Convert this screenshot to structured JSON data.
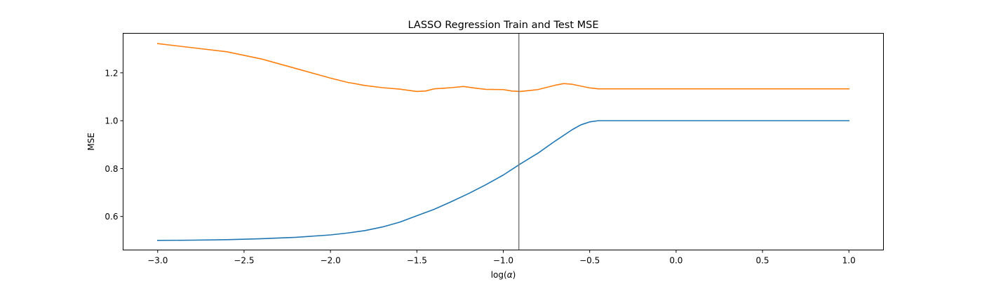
{
  "chart_data": {
    "type": "line",
    "title": "LASSO Regression Train and Test MSE",
    "xlabel_text": "log(",
    "xlabel_symbol": "α",
    "xlabel_close": ")",
    "ylabel": "MSE",
    "xlim": [
      -3.2,
      1.2
    ],
    "ylim": [
      0.46,
      1.365
    ],
    "xticks": [
      -3.0,
      -2.5,
      -2.0,
      -1.5,
      -1.0,
      -0.5,
      0.0,
      0.5,
      1.0
    ],
    "xtick_labels": [
      "−3.0",
      "−2.5",
      "−2.0",
      "−1.5",
      "−1.0",
      "−0.5",
      "0.0",
      "0.5",
      "1.0"
    ],
    "yticks": [
      0.6,
      0.8,
      1.0,
      1.2
    ],
    "ytick_labels": [
      "0.6",
      "0.8",
      "1.0",
      "1.2"
    ],
    "grid": false,
    "vline": {
      "x": -0.91,
      "color": "#808080"
    },
    "series": [
      {
        "color": "#1f77b4",
        "x": [
          -3.0,
          -2.8,
          -2.6,
          -2.4,
          -2.2,
          -2.0,
          -1.9,
          -1.8,
          -1.7,
          -1.6,
          -1.5,
          -1.4,
          -1.3,
          -1.2,
          -1.1,
          -1.0,
          -0.9,
          -0.8,
          -0.7,
          -0.6,
          -0.55,
          -0.5,
          -0.45,
          -0.4,
          0.0,
          0.5,
          1.0
        ],
        "y": [
          0.5,
          0.501,
          0.503,
          0.507,
          0.513,
          0.523,
          0.531,
          0.541,
          0.556,
          0.576,
          0.603,
          0.63,
          0.662,
          0.696,
          0.733,
          0.773,
          0.82,
          0.864,
          0.915,
          0.963,
          0.983,
          0.995,
          1.0,
          1.0,
          1.0,
          1.0,
          1.0
        ]
      },
      {
        "color": "#ff7f0e",
        "x": [
          -3.0,
          -2.8,
          -2.6,
          -2.4,
          -2.2,
          -2.0,
          -1.9,
          -1.8,
          -1.7,
          -1.6,
          -1.5,
          -1.45,
          -1.4,
          -1.3,
          -1.23,
          -1.15,
          -1.1,
          -1.0,
          -0.95,
          -0.9,
          -0.8,
          -0.7,
          -0.65,
          -0.6,
          -0.5,
          -0.45,
          0.0,
          0.5,
          1.0
        ],
        "y": [
          1.322,
          1.305,
          1.288,
          1.258,
          1.218,
          1.178,
          1.16,
          1.147,
          1.138,
          1.132,
          1.122,
          1.124,
          1.133,
          1.138,
          1.143,
          1.135,
          1.131,
          1.13,
          1.124,
          1.122,
          1.13,
          1.148,
          1.155,
          1.152,
          1.137,
          1.133,
          1.133,
          1.133,
          1.133
        ]
      }
    ]
  }
}
